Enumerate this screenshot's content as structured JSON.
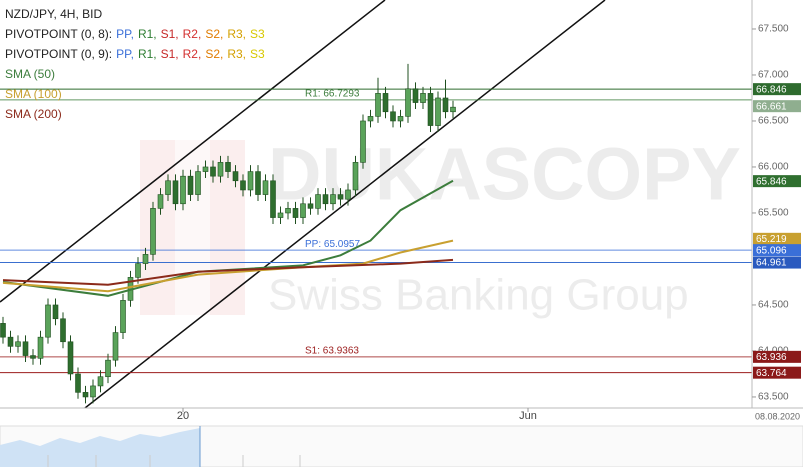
{
  "chart_data": {
    "type": "candlestick",
    "title": "NZD/JPY, 4H, BID",
    "open": [
      64.3,
      64.15,
      64.05,
      64.1,
      63.95,
      63.92,
      64.15,
      64.5,
      64.35,
      64.1,
      63.75,
      63.55,
      63.5,
      63.62,
      63.72,
      63.9,
      64.2,
      64.55,
      64.8,
      64.95,
      65.05,
      65.55,
      65.7,
      65.85,
      65.6,
      65.9,
      65.7,
      65.95,
      66.0,
      65.9,
      66.05,
      65.95,
      65.85,
      65.75,
      65.95,
      65.7,
      65.85,
      65.45,
      65.5,
      65.55,
      65.45,
      65.6,
      65.55,
      65.7,
      65.6,
      65.7,
      65.65,
      65.75,
      66.05,
      66.5,
      66.55,
      66.8,
      66.6,
      66.5,
      66.55,
      66.85,
      66.7,
      66.8,
      66.45,
      66.75,
      66.6
    ],
    "high": [
      64.37,
      64.22,
      64.17,
      64.17,
      64.02,
      64.22,
      64.57,
      64.57,
      64.42,
      64.17,
      63.82,
      63.62,
      63.69,
      63.79,
      63.97,
      64.27,
      64.62,
      64.87,
      65.02,
      65.12,
      65.62,
      65.77,
      65.92,
      65.92,
      65.97,
      65.97,
      66.02,
      66.07,
      66.07,
      66.12,
      66.12,
      66.02,
      65.92,
      66.02,
      66.02,
      65.92,
      65.92,
      65.57,
      65.62,
      65.62,
      65.67,
      65.67,
      65.77,
      65.77,
      65.77,
      65.77,
      65.82,
      66.12,
      66.57,
      66.62,
      66.97,
      66.87,
      66.67,
      66.62,
      67.12,
      66.92,
      66.87,
      66.87,
      66.82,
      66.95,
      66.72
    ],
    "low": [
      64.08,
      63.98,
      63.98,
      63.88,
      63.85,
      63.85,
      64.08,
      64.28,
      64.03,
      63.68,
      63.48,
      63.43,
      63.43,
      63.55,
      63.65,
      63.83,
      64.13,
      64.48,
      64.73,
      64.88,
      64.98,
      65.48,
      65.63,
      65.53,
      65.53,
      65.63,
      65.63,
      65.88,
      65.83,
      65.83,
      65.88,
      65.78,
      65.68,
      65.68,
      65.63,
      65.63,
      65.38,
      65.38,
      65.43,
      65.38,
      65.38,
      65.48,
      65.48,
      65.53,
      65.53,
      65.58,
      65.58,
      65.68,
      65.98,
      66.43,
      66.48,
      66.53,
      66.43,
      66.43,
      66.48,
      66.63,
      66.63,
      66.38,
      66.38,
      66.53,
      66.53
    ],
    "close": [
      64.15,
      64.05,
      64.1,
      63.95,
      63.92,
      64.15,
      64.5,
      64.35,
      64.1,
      63.75,
      63.55,
      63.5,
      63.62,
      63.72,
      63.9,
      64.2,
      64.55,
      64.8,
      64.95,
      65.05,
      65.55,
      65.7,
      65.85,
      65.6,
      65.9,
      65.7,
      65.95,
      66.0,
      65.9,
      66.05,
      65.95,
      65.85,
      65.75,
      65.95,
      65.7,
      65.85,
      65.45,
      65.5,
      65.55,
      65.45,
      65.6,
      65.55,
      65.7,
      65.6,
      65.7,
      65.65,
      65.75,
      66.05,
      66.5,
      66.55,
      66.8,
      66.6,
      66.5,
      66.55,
      66.85,
      66.7,
      66.8,
      66.45,
      66.75,
      66.6,
      66.65
    ],
    "up_color": "#5aa35a",
    "down_color": "#2e6e2e",
    "ylim": [
      63.38,
      67.815
    ],
    "yticks": [
      {
        "value": 67.5,
        "label": "67.500"
      },
      {
        "value": 67,
        "label": "67.000"
      },
      {
        "value": 66.5,
        "label": "66.500"
      },
      {
        "value": 66,
        "label": "66.000"
      },
      {
        "value": 65.5,
        "label": "65.500"
      },
      {
        "value": 64.5,
        "label": "64.500"
      },
      {
        "value": 64,
        "label": "64.000"
      },
      {
        "value": 63.5,
        "label": "63.500"
      }
    ],
    "xticks": [
      {
        "value": 24,
        "label": "20"
      },
      {
        "value": 70,
        "label": "Jun"
      }
    ],
    "date_label": "08.08.2020",
    "pivots": [
      {
        "label": "PIVOTPOINT (0, 8):",
        "items": [
          {
            "name": "PP,",
            "color": "#3a6fd8"
          },
          {
            "name": "R1,",
            "color": "#2e7d32"
          },
          {
            "name": "S1,",
            "color": "#c62828"
          },
          {
            "name": "R2,",
            "color": "#d32f2f"
          },
          {
            "name": "S2,",
            "color": "#e07b00"
          },
          {
            "name": "R3,",
            "color": "#d4a000"
          },
          {
            "name": "S3",
            "color": "#d8c800"
          }
        ]
      },
      {
        "label": "PIVOTPOINT (0, 9):",
        "items": [
          {
            "name": "PP,",
            "color": "#3a6fd8"
          },
          {
            "name": "R1,",
            "color": "#2e7d32"
          },
          {
            "name": "S1,",
            "color": "#c62828"
          },
          {
            "name": "R2,",
            "color": "#d32f2f"
          },
          {
            "name": "S2,",
            "color": "#e07b00"
          },
          {
            "name": "R3,",
            "color": "#d4a000"
          },
          {
            "name": "S3",
            "color": "#d8c800"
          }
        ]
      }
    ],
    "series": [
      {
        "name": "SMA (50)",
        "color": "#3c7d3c",
        "x": [
          0,
          14,
          26,
          40,
          45,
          49,
          53,
          60
        ],
        "values": [
          64.75,
          64.6,
          64.86,
          64.93,
          65.04,
          65.2,
          65.53,
          65.85
        ]
      },
      {
        "name": "SMA (100)",
        "color": "#c8a030",
        "x": [
          0,
          14,
          26,
          40,
          48,
          53,
          60
        ],
        "values": [
          64.74,
          64.65,
          64.83,
          64.91,
          64.95,
          65.07,
          65.2
        ]
      },
      {
        "name": "SMA (200)",
        "color": "#8b2a1a",
        "x": [
          0,
          14,
          26,
          40,
          53,
          60
        ],
        "values": [
          64.77,
          64.72,
          64.86,
          64.91,
          64.95,
          64.99
        ]
      }
    ],
    "levels": [
      {
        "label": "R1: 66.7293",
        "value": 66.7293,
        "color": "#3c7d3c"
      },
      {
        "label": "PP: 65.0957",
        "value": 65.0957,
        "color": "#3a6fd8"
      },
      {
        "label": "S1: 63.9363",
        "value": 63.9363,
        "color": "#9b1c1c"
      }
    ],
    "lines": [
      {
        "value": 66.846,
        "color": "#2e6b2e"
      },
      {
        "value": 64.961,
        "color": "#3a6fcf"
      },
      {
        "value": 63.764,
        "color": "#9b1c1c"
      }
    ],
    "price_tags": [
      {
        "value": 66.846,
        "color": "#2e6b2e"
      },
      {
        "value": 66.661,
        "color": "#8fae8f"
      },
      {
        "value": 65.846,
        "color": "#2f6f2f"
      },
      {
        "value": 65.219,
        "color": "#c8a030"
      },
      {
        "value": 65.096,
        "color": "#3a6fd8"
      },
      {
        "value": 64.961,
        "color": "#2a5abf"
      },
      {
        "value": 63.936,
        "color": "#8b1a1a"
      },
      {
        "value": 63.764,
        "color": "#8b1a1a"
      }
    ],
    "watermark": [
      "DUKASCOPY",
      "Swiss Banking Group"
    ]
  }
}
